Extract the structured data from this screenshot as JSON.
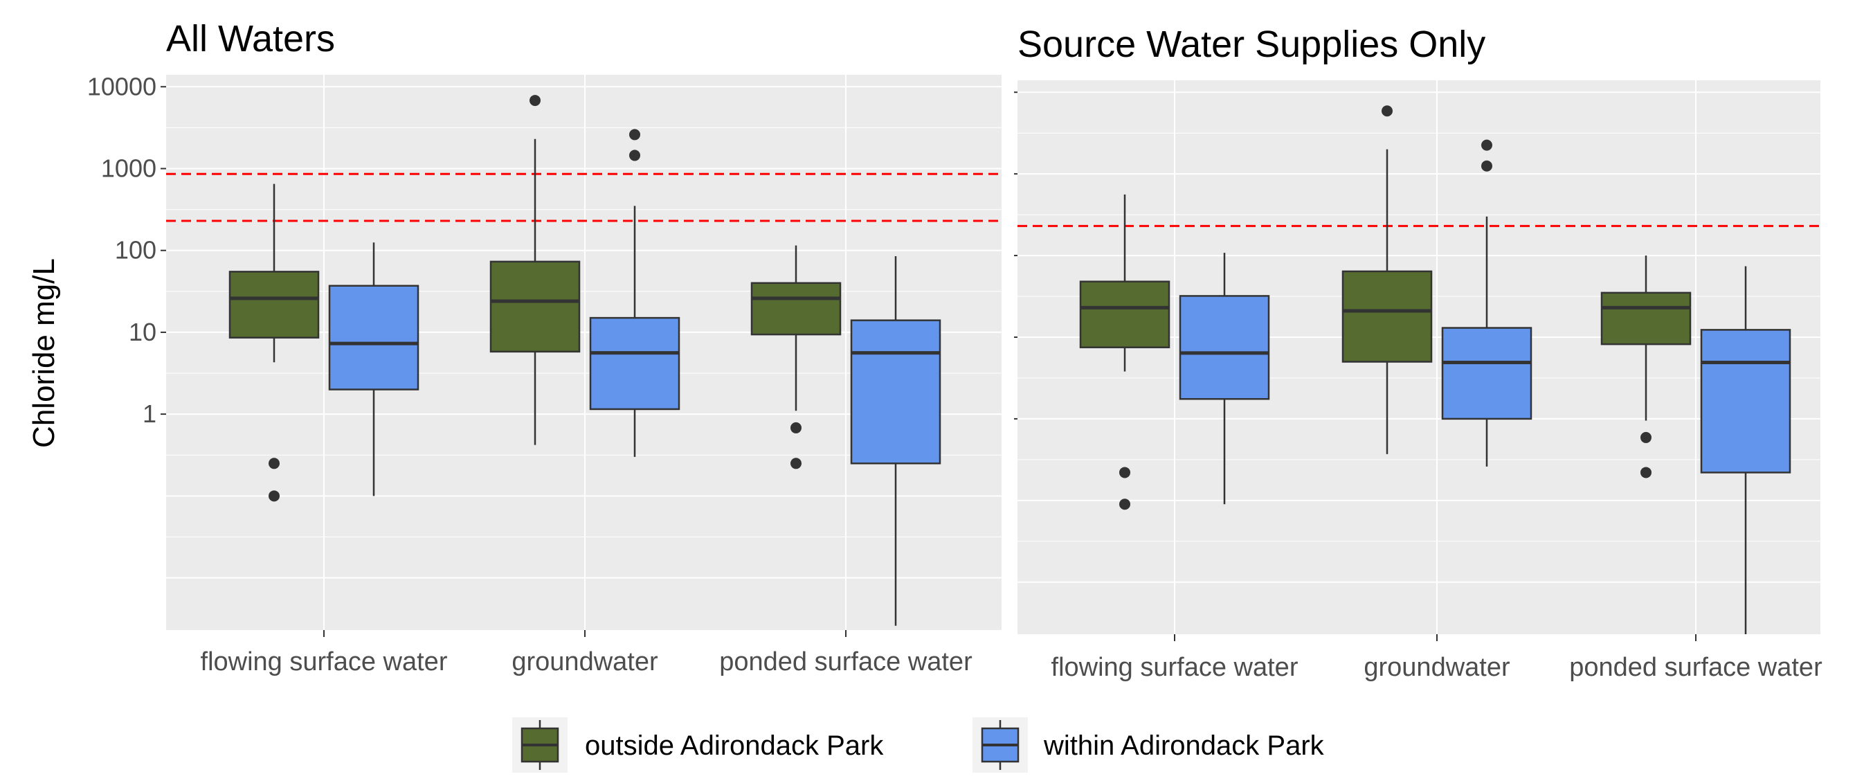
{
  "chart_data": [
    {
      "type": "boxplot",
      "title": "All Waters",
      "ylabel": "Chloride mg/L",
      "y_scale": "log10",
      "ylim": [
        0.0023,
        14000
      ],
      "y_ticks": [
        {
          "value": 1,
          "label": "1"
        },
        {
          "value": 10,
          "label": "10"
        },
        {
          "value": 100,
          "label": "100"
        },
        {
          "value": 1000,
          "label": "1000"
        },
        {
          "value": 10000,
          "label": "10000"
        }
      ],
      "reference_lines": [
        {
          "value": 860,
          "color": "#ff0000",
          "style": "dashed"
        },
        {
          "value": 230,
          "color": "#ff0000",
          "style": "dashed"
        }
      ],
      "categories": [
        "flowing surface water",
        "groundwater",
        "ponded surface water"
      ],
      "series": [
        {
          "name": "outside Adirondack Park",
          "color": "#556b2f",
          "boxes": [
            {
              "whisker_low": 4.3,
              "q1": 8.6,
              "median": 26,
              "q3": 55,
              "whisker_high": 650,
              "outliers": [
                0.25,
                0.1
              ]
            },
            {
              "whisker_low": 0.42,
              "q1": 5.8,
              "median": 24,
              "q3": 73,
              "whisker_high": 2300,
              "outliers": [
                6800
              ]
            },
            {
              "whisker_low": 1.1,
              "q1": 9.4,
              "median": 26,
              "q3": 40,
              "whisker_high": 115,
              "outliers": [
                0.68,
                0.25
              ]
            }
          ]
        },
        {
          "name": "within Adirondack Park",
          "color": "#6495ed",
          "boxes": [
            {
              "whisker_low": 0.1,
              "q1": 2.0,
              "median": 7.3,
              "q3": 37,
              "whisker_high": 125,
              "outliers": []
            },
            {
              "whisker_low": 0.3,
              "q1": 1.15,
              "median": 5.6,
              "q3": 15,
              "whisker_high": 350,
              "outliers": [
                2600,
                1450
              ]
            },
            {
              "whisker_low": 0.0026,
              "q1": 0.25,
              "median": 5.6,
              "q3": 14,
              "whisker_high": 85,
              "outliers": []
            }
          ]
        }
      ]
    },
    {
      "type": "boxplot",
      "title": "Source Water Supplies Only",
      "ylabel": "",
      "y_scale": "log10",
      "ylim": [
        0.0023,
        14000
      ],
      "y_ticks": [],
      "reference_lines": [
        {
          "value": 230,
          "color": "#ff0000",
          "style": "dashed"
        }
      ],
      "categories": [
        "flowing surface water",
        "groundwater",
        "ponded surface water"
      ],
      "series": [
        {
          "name": "outside Adirondack Park",
          "color": "#556b2f",
          "boxes": [
            {
              "whisker_low": 3.8,
              "q1": 7.5,
              "median": 23,
              "q3": 48,
              "whisker_high": 560,
              "outliers": [
                0.22,
                0.09
              ]
            },
            {
              "whisker_low": 0.37,
              "q1": 5.0,
              "median": 21,
              "q3": 64,
              "whisker_high": 2000,
              "outliers": [
                5900
              ]
            },
            {
              "whisker_low": 0.95,
              "q1": 8.2,
              "median": 23,
              "q3": 35,
              "whisker_high": 100,
              "outliers": [
                0.59,
                0.22
              ]
            }
          ]
        },
        {
          "name": "within Adirondack Park",
          "color": "#6495ed",
          "boxes": [
            {
              "whisker_low": 0.09,
              "q1": 1.75,
              "median": 6.4,
              "q3": 32,
              "whisker_high": 108,
              "outliers": []
            },
            {
              "whisker_low": 0.26,
              "q1": 1.0,
              "median": 4.9,
              "q3": 13,
              "whisker_high": 300,
              "outliers": [
                2250,
                1250
              ]
            },
            {
              "whisker_low": 0.0023,
              "q1": 0.22,
              "median": 4.9,
              "q3": 12.3,
              "whisker_high": 74,
              "outliers": []
            }
          ]
        }
      ]
    }
  ],
  "legend": {
    "position": "bottom",
    "items": [
      {
        "label": "outside Adirondack Park",
        "color": "#556b2f"
      },
      {
        "label": "within Adirondack Park",
        "color": "#6495ed"
      }
    ]
  },
  "colors": {
    "panel_background": "#ebebeb",
    "grid": "#ffffff",
    "box_outline": "#333333",
    "reference_line": "#ff0000"
  }
}
